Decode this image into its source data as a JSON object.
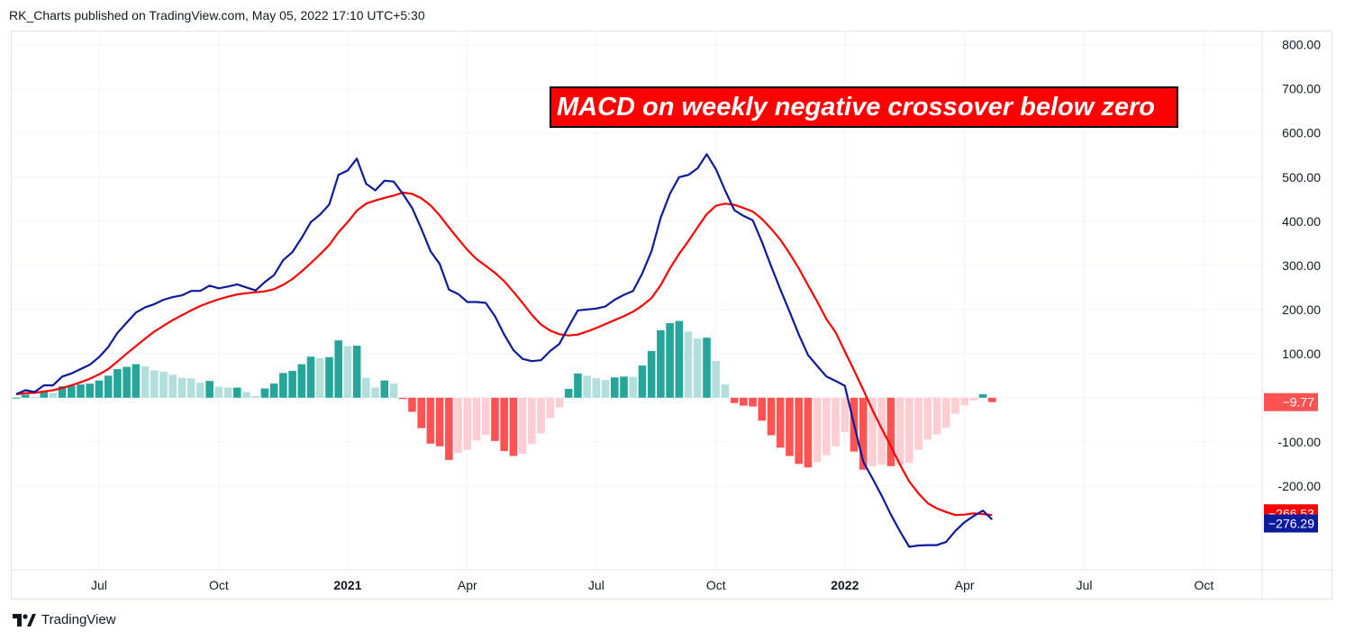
{
  "header": {
    "text": "RK_Charts published on TradingView.com, May 05, 2022 17:10 UTC+5:30"
  },
  "footer": {
    "brand": "TradingView"
  },
  "chart_data": {
    "type": "line",
    "annotation": "MACD on weekly negative crossover below zero",
    "x_ticks": [
      {
        "label": "Jul",
        "bold": false
      },
      {
        "label": "Oct",
        "bold": false
      },
      {
        "label": "2021",
        "bold": true
      },
      {
        "label": "Apr",
        "bold": false
      },
      {
        "label": "Jul",
        "bold": false
      },
      {
        "label": "Oct",
        "bold": false
      },
      {
        "label": "2022",
        "bold": true
      },
      {
        "label": "Apr",
        "bold": false
      },
      {
        "label": "Jul",
        "bold": false
      },
      {
        "label": "Oct",
        "bold": false
      }
    ],
    "y_ticks": [
      "800.00",
      "700.00",
      "600.00",
      "500.00",
      "400.00",
      "300.00",
      "200.00",
      "100.00",
      "-100.00",
      "-200.00"
    ],
    "ylim": [
      -390,
      830
    ],
    "grid": true,
    "colors": {
      "macd": "#0c1b9c",
      "signal": "#ff0000",
      "hist_pos_strong": "#26a69a",
      "hist_pos_weak": "#b2dfdb",
      "hist_neg_strong": "#ff5252",
      "hist_neg_weak": "#ffcdd2"
    },
    "macd": [
      8,
      17,
      13,
      28,
      28,
      48,
      55,
      65,
      75,
      92,
      115,
      147,
      170,
      193,
      205,
      212,
      222,
      228,
      232,
      242,
      242,
      254,
      248,
      252,
      257,
      250,
      243,
      262,
      278,
      312,
      330,
      362,
      398,
      415,
      438,
      505,
      515,
      542,
      485,
      470,
      492,
      490,
      462,
      430,
      383,
      332,
      303,
      245,
      235,
      217,
      217,
      215,
      185,
      143,
      108,
      88,
      83,
      85,
      106,
      122,
      161,
      198,
      200,
      202,
      207,
      222,
      233,
      242,
      282,
      332,
      408,
      462,
      500,
      505,
      520,
      552,
      518,
      470,
      425,
      412,
      402,
      353,
      298,
      245,
      195,
      143,
      97,
      72,
      48,
      38,
      27,
      -60,
      -145,
      -183,
      -222,
      -265,
      -303,
      -338,
      -335,
      -334,
      -334,
      -327,
      -302,
      -282,
      -268,
      -256,
      -276
    ],
    "signal": [
      8,
      10,
      11,
      14,
      17,
      22,
      28,
      35,
      43,
      53,
      65,
      82,
      100,
      117,
      134,
      150,
      163,
      176,
      187,
      198,
      208,
      216,
      223,
      229,
      234,
      237,
      239,
      241,
      246,
      256,
      269,
      286,
      305,
      325,
      346,
      375,
      398,
      424,
      440,
      447,
      453,
      458,
      465,
      462,
      452,
      436,
      413,
      386,
      360,
      335,
      314,
      299,
      283,
      264,
      240,
      215,
      188,
      166,
      152,
      144,
      141,
      143,
      150,
      158,
      167,
      176,
      185,
      195,
      209,
      226,
      255,
      293,
      326,
      355,
      386,
      416,
      435,
      440,
      437,
      430,
      422,
      405,
      383,
      358,
      327,
      293,
      255,
      218,
      178,
      148,
      105,
      62,
      18,
      -28,
      -70,
      -110,
      -152,
      -190,
      -217,
      -239,
      -251,
      -259,
      -266,
      -265,
      -262,
      -264,
      -266
    ],
    "legend": {
      "signal_label": "−266.53",
      "macd_label": "−276.29",
      "hist_label": "−9.77"
    }
  }
}
